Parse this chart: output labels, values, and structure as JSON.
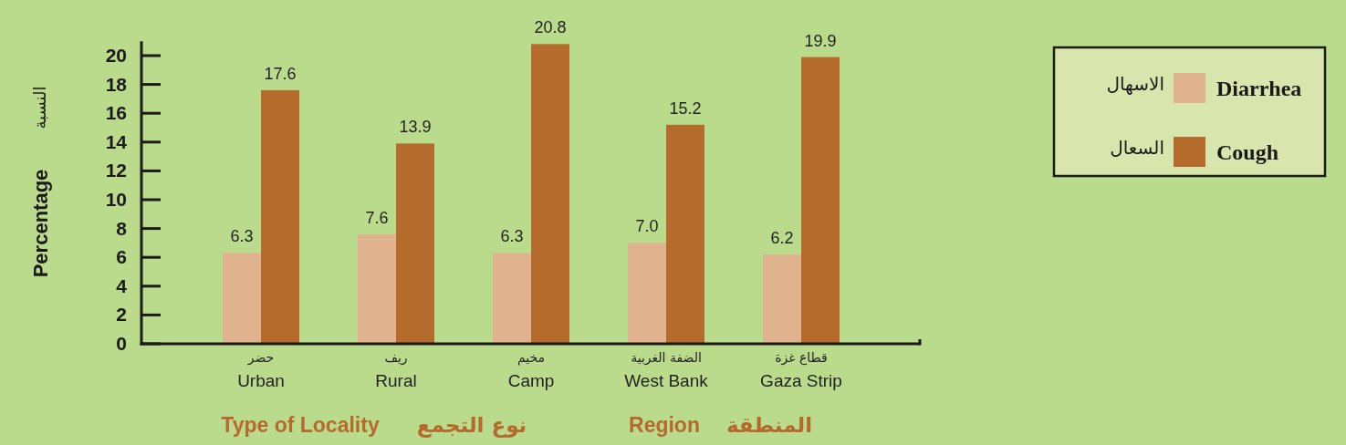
{
  "chart_data": {
    "type": "bar",
    "ylabel": "Percentage",
    "categories": [
      "Urban",
      "Rural",
      "Camp",
      "West Bank",
      "Gaza Strip"
    ],
    "series": [
      {
        "name": "Diarrhea",
        "color": "#e0b38e",
        "values": [
          6.3,
          7.6,
          6.3,
          7.0,
          6.2
        ],
        "value_labels": [
          "6.3",
          "7.6",
          "6.3",
          "7.0",
          "6.2"
        ]
      },
      {
        "name": "Cough",
        "color": "#b56b2b",
        "values": [
          17.6,
          13.9,
          20.8,
          15.2,
          19.9
        ],
        "value_labels": [
          "17.6",
          "13.9",
          "20.8",
          "15.2",
          "19.9"
        ]
      }
    ],
    "ylim": [
      0,
      21
    ],
    "yticks": [
      0,
      2,
      4,
      6,
      8,
      10,
      12,
      14,
      16,
      18,
      20
    ],
    "legend": "right",
    "grid": false,
    "annotations": [
      "النسبة",
      "حضر",
      "ريف",
      "مخيم",
      "الضفة الغربية",
      "قطاع غزة",
      "Type of Locality",
      "نوع التجمع",
      "Region",
      "المنطقة",
      "الاسهال",
      "السعال"
    ]
  }
}
